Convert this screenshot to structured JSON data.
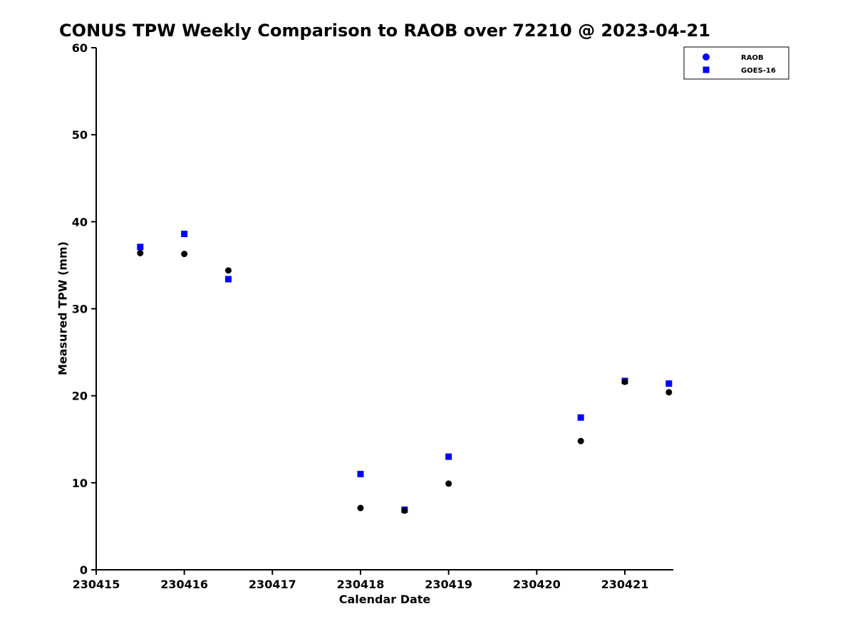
{
  "chart_data": {
    "type": "scatter",
    "title": "CONUS TPW Weekly Comparison to RAOB over 72210 @ 2023-04-21",
    "xlabel": "Calendar Date",
    "ylabel": "Measured TPW (mm)",
    "xlim": [
      230415,
      230421.55
    ],
    "ylim": [
      0,
      60
    ],
    "xticks": [
      "230415",
      "230416",
      "230417",
      "230418",
      "230419",
      "230420",
      "230421"
    ],
    "yticks": [
      "0",
      "10",
      "20",
      "30",
      "40",
      "50",
      "60"
    ],
    "grid": false,
    "background": "#ffffff",
    "axis_color": "#000000",
    "legend": {
      "position": "top-right",
      "border_color": "#000000"
    },
    "series": [
      {
        "name": "RAOB",
        "marker": "circle",
        "color": "#000000",
        "legend_color": "#0000ff",
        "x": [
          230415.5,
          230416.0,
          230416.5,
          230418.0,
          230418.5,
          230419.0,
          230420.5,
          230421.0,
          230421.5
        ],
        "y": [
          36.4,
          36.3,
          34.4,
          7.1,
          6.8,
          9.9,
          14.8,
          21.6,
          20.4
        ]
      },
      {
        "name": "GOES-16",
        "marker": "square",
        "color": "#0000ff",
        "legend_color": "#0000ff",
        "x": [
          230415.5,
          230416.0,
          230416.5,
          230418.0,
          230418.5,
          230419.0,
          230420.5,
          230421.0,
          230421.5
        ],
        "y": [
          37.1,
          38.6,
          33.4,
          11.0,
          6.9,
          13.0,
          17.5,
          21.7,
          21.4
        ]
      }
    ]
  }
}
